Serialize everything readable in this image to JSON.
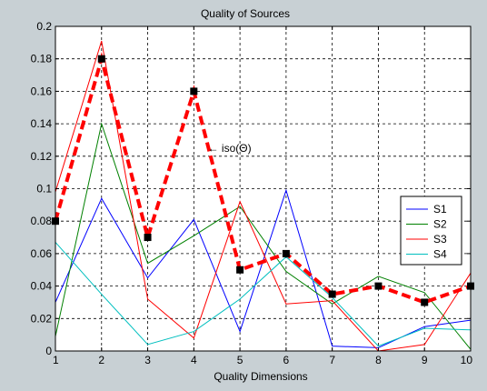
{
  "chart_data": {
    "type": "line",
    "title": "Quality of Sources",
    "xlabel": "Quality Dimensions",
    "ylabel": "",
    "xlim": [
      1,
      10
    ],
    "ylim": [
      0,
      0.2
    ],
    "grid": true,
    "x": [
      1,
      2,
      3,
      4,
      5,
      6,
      7,
      8,
      9,
      10
    ],
    "x_ticks": [
      "1",
      "2",
      "3",
      "4",
      "5",
      "6",
      "7",
      "8",
      "9",
      "10"
    ],
    "y_ticks": [
      "0",
      "0.02",
      "0.04",
      "0.06",
      "0.08",
      "0.1",
      "0.12",
      "0.14",
      "0.16",
      "0.18",
      "0.2"
    ],
    "legend_position": "right",
    "series": [
      {
        "name": "S1",
        "color": "#0000ff",
        "values": [
          0.03,
          0.094,
          0.045,
          0.081,
          0.012,
          0.099,
          0.003,
          0.002,
          0.015,
          0.019
        ]
      },
      {
        "name": "S2",
        "color": "#008000",
        "values": [
          0.009,
          0.14,
          0.054,
          0.071,
          0.089,
          0.049,
          0.029,
          0.046,
          0.036,
          0.001
        ]
      },
      {
        "name": "S3",
        "color": "#ff0000",
        "values": [
          0.098,
          0.191,
          0.032,
          0.008,
          0.092,
          0.029,
          0.031,
          0.0,
          0.004,
          0.048
        ]
      },
      {
        "name": "S4",
        "color": "#00bfbf",
        "values": [
          0.067,
          0.035,
          0.004,
          0.012,
          0.032,
          0.058,
          0.033,
          0.003,
          0.014,
          0.013
        ]
      }
    ],
    "iso": {
      "color": "#ff0000",
      "marker_color": "#000000",
      "values": [
        0.08,
        0.18,
        0.07,
        0.16,
        0.05,
        0.06,
        0.035,
        0.04,
        0.03,
        0.04
      ]
    },
    "annotation": {
      "text": "← iso(Θ)",
      "x": 4.3,
      "y": 0.125
    }
  }
}
